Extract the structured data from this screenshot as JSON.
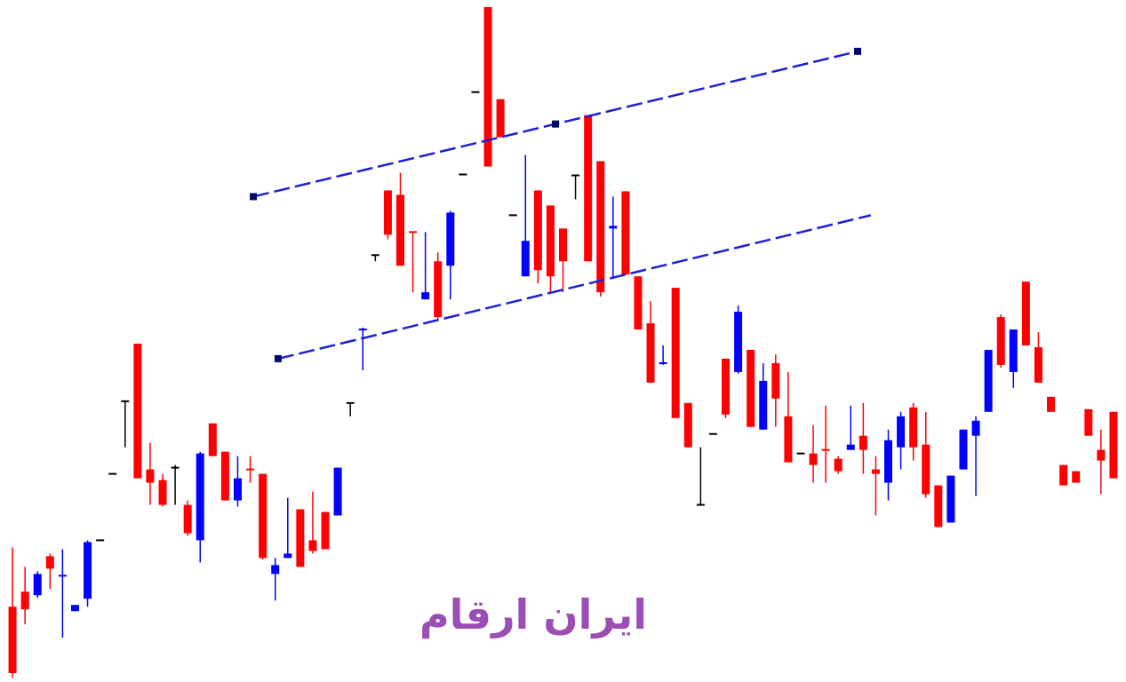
{
  "chart_data": {
    "type": "candlestick",
    "watermark": "ایران ارقام",
    "x": [
      0,
      1,
      2,
      3,
      4,
      5,
      6,
      7,
      8,
      9,
      10,
      11,
      12,
      13,
      14,
      15,
      16,
      17,
      18,
      19,
      20,
      21,
      22,
      23,
      24,
      25,
      26,
      27,
      28,
      29,
      30,
      31,
      32,
      33,
      34,
      35,
      36,
      37,
      38,
      39,
      40,
      41,
      42,
      43,
      44,
      45,
      46,
      47,
      48,
      49,
      50,
      51,
      52,
      53,
      54,
      55,
      56,
      57,
      58,
      59,
      60,
      61,
      62,
      63,
      64,
      65,
      66,
      67,
      68,
      69,
      70,
      71,
      72,
      73,
      74,
      75,
      76,
      77,
      78,
      79,
      80,
      81,
      82,
      83,
      84,
      85,
      86,
      87,
      88
    ],
    "open": [
      85,
      102,
      98,
      142,
      118,
      80,
      94,
      160,
      235,
      317,
      382,
      240,
      228,
      242,
      200,
      160,
      292,
      260,
      205,
      240,
      235,
      122,
      140,
      195,
      160,
      192,
      188,
      315,
      396,
      482,
      555,
      550,
      508,
      432,
      475,
      470,
      573,
      666,
      762,
      658,
      527,
      458,
      555,
      538,
      512,
      572,
      640,
      588,
      512,
      554,
      458,
      405,
      358,
      445,
      315,
      200,
      280,
      365,
      350,
      375,
      285,
      360,
      300,
      258,
      258,
      262,
      252,
      262,
      278,
      240,
      225,
      265,
      310,
      268,
      222,
      180,
      240,
      278,
      305,
      412,
      350,
      452,
      378,
      322,
      245,
      238,
      308,
      262,
      305
    ],
    "high": [
      152,
      130,
      125,
      145,
      150,
      87,
      160,
      160,
      235,
      317,
      382,
      270,
      235,
      245,
      205,
      260,
      292,
      260,
      255,
      255,
      235,
      140,
      208,
      195,
      215,
      192,
      242,
      315,
      400,
      482,
      555,
      575,
      508,
      508,
      485,
      532,
      573,
      666,
      762,
      658,
      527,
      595,
      555,
      538,
      512,
      572,
      640,
      588,
      548,
      554,
      458,
      430,
      380,
      445,
      315,
      265,
      280,
      365,
      425,
      375,
      360,
      370,
      350,
      258,
      290,
      312,
      255,
      312,
      315,
      255,
      285,
      305,
      315,
      305,
      222,
      233,
      285,
      300,
      375,
      415,
      398,
      452,
      395,
      322,
      245,
      238,
      308,
      285,
      305
    ],
    "low": [
      5,
      65,
      95,
      105,
      50,
      80,
      85,
      160,
      235,
      265,
      230,
      200,
      198,
      200,
      165,
      135,
      255,
      205,
      198,
      225,
      138,
      92,
      140,
      130,
      145,
      150,
      188,
      300,
      352,
      475,
      500,
      470,
      440,
      432,
      408,
      432,
      573,
      666,
      582,
      615,
      527,
      458,
      450,
      440,
      440,
      545,
      475,
      435,
      455,
      460,
      398,
      338,
      358,
      298,
      265,
      200,
      280,
      298,
      348,
      288,
      285,
      288,
      248,
      258,
      225,
      225,
      235,
      262,
      235,
      188,
      205,
      240,
      250,
      208,
      175,
      180,
      240,
      210,
      305,
      355,
      332,
      380,
      338,
      305,
      222,
      225,
      278,
      212,
      230
    ],
    "close": [
      10,
      82,
      122,
      128,
      120,
      87,
      158,
      160,
      235,
      317,
      230,
      225,
      200,
      242,
      168,
      258,
      255,
      205,
      230,
      238,
      140,
      132,
      145,
      130,
      148,
      150,
      242,
      315,
      398,
      482,
      505,
      470,
      506,
      440,
      412,
      530,
      573,
      666,
      582,
      615,
      527,
      498,
      465,
      458,
      475,
      572,
      475,
      440,
      515,
      460,
      398,
      338,
      360,
      298,
      265,
      200,
      280,
      302,
      418,
      288,
      340,
      320,
      248,
      258,
      245,
      260,
      238,
      268,
      262,
      235,
      273,
      300,
      265,
      212,
      175,
      233,
      285,
      295,
      375,
      358,
      398,
      380,
      338,
      305,
      222,
      225,
      278,
      250,
      230
    ],
    "up_color": "#0000ff",
    "down_color": "#ff0000",
    "doji_color": "#000000",
    "xlim": [
      -1,
      89
    ],
    "ylim": [
      0,
      770
    ],
    "trendlines": [
      {
        "x": [
          19.25,
          43.4,
          67.55
        ],
        "y": [
          548,
          630,
          712
        ],
        "color": "#1f1fd6"
      },
      {
        "x": [
          21.23,
          68.6
        ],
        "y": [
          365,
          527
        ],
        "color": "#1f1fd6"
      }
    ]
  }
}
